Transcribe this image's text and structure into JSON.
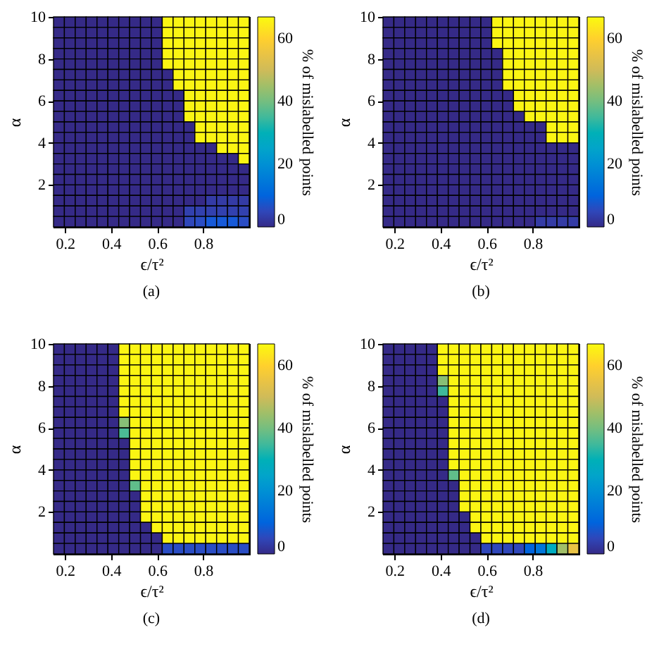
{
  "chart_data": [
    {
      "type": "heatmap",
      "title": "(a)",
      "xlabel": "ϵ/τ²",
      "ylabel": "α",
      "clabel": "% of mislabelled points",
      "xlim": [
        0.15,
        1
      ],
      "xticks": [
        0.2,
        0.4,
        0.6,
        0.8
      ],
      "ylim": [
        0,
        10
      ],
      "yticks": [
        2,
        4,
        6,
        8,
        10
      ],
      "clim": [
        0,
        67
      ],
      "cticks": [
        0,
        20,
        40,
        60
      ],
      "grid": false,
      "cells": [
        [
          0,
          0,
          0,
          0,
          0,
          0,
          0,
          0,
          0,
          0,
          66,
          66,
          66,
          66,
          66,
          66,
          66,
          66
        ],
        [
          0,
          0,
          0,
          0,
          0,
          0,
          0,
          0,
          0,
          0,
          66,
          66,
          66,
          66,
          66,
          66,
          66,
          66
        ],
        [
          0,
          0,
          0,
          0,
          0,
          0,
          0,
          0,
          0,
          0,
          66,
          66,
          66,
          66,
          66,
          66,
          66,
          66
        ],
        [
          0,
          0,
          0,
          0,
          0,
          0,
          0,
          0,
          0,
          0,
          66,
          66,
          66,
          66,
          66,
          66,
          66,
          66
        ],
        [
          0,
          0,
          0,
          0,
          0,
          0,
          0,
          0,
          0,
          0,
          66,
          66,
          66,
          66,
          66,
          66,
          66,
          66
        ],
        [
          0,
          0,
          0,
          0,
          0,
          0,
          0,
          0,
          0,
          0,
          0,
          66,
          66,
          66,
          66,
          66,
          66,
          66
        ],
        [
          0,
          0,
          0,
          0,
          0,
          0,
          0,
          0,
          0,
          0,
          0,
          66,
          66,
          66,
          66,
          66,
          66,
          66
        ],
        [
          0,
          0,
          0,
          0,
          0,
          0,
          0,
          0,
          0,
          0,
          0,
          0,
          66,
          66,
          66,
          66,
          66,
          66
        ],
        [
          0,
          0,
          0,
          0,
          0,
          0,
          0,
          0,
          0,
          0,
          0,
          0,
          66,
          66,
          66,
          66,
          66,
          66
        ],
        [
          0,
          0,
          0,
          0,
          0,
          0,
          0,
          0,
          0,
          0,
          0,
          0,
          66,
          66,
          66,
          66,
          66,
          66
        ],
        [
          0,
          0,
          0,
          0,
          0,
          0,
          0,
          0,
          0,
          0,
          0,
          0,
          0,
          66,
          66,
          66,
          66,
          66
        ],
        [
          0,
          0,
          0,
          0,
          0,
          0,
          0,
          0,
          0,
          0,
          0,
          0,
          0,
          66,
          66,
          66,
          66,
          66
        ],
        [
          0,
          0,
          0,
          0,
          0,
          0,
          0,
          0,
          0,
          0,
          0,
          0,
          0,
          0,
          0,
          66,
          66,
          66
        ],
        [
          0,
          0,
          0,
          0,
          0,
          0,
          0,
          0,
          0,
          0,
          0,
          0,
          0,
          0,
          0,
          0,
          0,
          66
        ],
        [
          0,
          0,
          0,
          0,
          0,
          0,
          0,
          0,
          0,
          0,
          0,
          0,
          0,
          0,
          0,
          0,
          0,
          0
        ],
        [
          0,
          0,
          0,
          0,
          0,
          0,
          0,
          0,
          0,
          0,
          0,
          0,
          0,
          0,
          0,
          0,
          0,
          0
        ],
        [
          0,
          0,
          0,
          0,
          0,
          0,
          0,
          0,
          0,
          0,
          0,
          0,
          0,
          0,
          0,
          0,
          0,
          0
        ],
        [
          0,
          0,
          0,
          0,
          0,
          0,
          0,
          0,
          0,
          0,
          0,
          0,
          0,
          0,
          3,
          3,
          3,
          3
        ],
        [
          0,
          0,
          0,
          0,
          0,
          0,
          0,
          0,
          0,
          0,
          0,
          0,
          4,
          4,
          4,
          4,
          4,
          4
        ],
        [
          0,
          0,
          0,
          0,
          0,
          0,
          0,
          0,
          0,
          0,
          0,
          0,
          5,
          6,
          8,
          8,
          8,
          6
        ]
      ]
    },
    {
      "type": "heatmap",
      "title": "(b)",
      "xlabel": "ϵ/τ²",
      "ylabel": "α",
      "clabel": "% of mislabelled points",
      "xlim": [
        0.15,
        1
      ],
      "xticks": [
        0.2,
        0.4,
        0.6,
        0.8
      ],
      "ylim": [
        0,
        10
      ],
      "yticks": [
        2,
        4,
        6,
        8,
        10
      ],
      "clim": [
        0,
        67
      ],
      "cticks": [
        0,
        20,
        40,
        60
      ],
      "grid": false,
      "cells": [
        [
          0,
          0,
          0,
          0,
          0,
          0,
          0,
          0,
          0,
          0,
          66,
          66,
          66,
          66,
          66,
          66,
          66,
          66
        ],
        [
          0,
          0,
          0,
          0,
          0,
          0,
          0,
          0,
          0,
          0,
          66,
          66,
          66,
          66,
          66,
          66,
          66,
          66
        ],
        [
          0,
          0,
          0,
          0,
          0,
          0,
          0,
          0,
          0,
          0,
          66,
          66,
          66,
          66,
          66,
          66,
          66,
          66
        ],
        [
          0,
          0,
          0,
          0,
          0,
          0,
          0,
          0,
          0,
          0,
          0,
          66,
          66,
          66,
          66,
          66,
          66,
          66
        ],
        [
          0,
          0,
          0,
          0,
          0,
          0,
          0,
          0,
          0,
          0,
          0,
          66,
          66,
          66,
          66,
          66,
          66,
          66
        ],
        [
          0,
          0,
          0,
          0,
          0,
          0,
          0,
          0,
          0,
          0,
          0,
          66,
          66,
          66,
          66,
          66,
          66,
          66
        ],
        [
          0,
          0,
          0,
          0,
          0,
          0,
          0,
          0,
          0,
          0,
          0,
          66,
          66,
          66,
          66,
          66,
          66,
          66
        ],
        [
          0,
          0,
          0,
          0,
          0,
          0,
          0,
          0,
          0,
          0,
          0,
          0,
          66,
          66,
          66,
          66,
          66,
          66
        ],
        [
          0,
          0,
          0,
          0,
          0,
          0,
          0,
          0,
          0,
          0,
          0,
          0,
          66,
          66,
          66,
          66,
          66,
          66
        ],
        [
          0,
          0,
          0,
          0,
          0,
          0,
          0,
          0,
          0,
          0,
          0,
          0,
          0,
          66,
          66,
          66,
          66,
          66
        ],
        [
          0,
          0,
          0,
          0,
          0,
          0,
          0,
          0,
          0,
          0,
          0,
          0,
          0,
          0,
          0,
          66,
          66,
          66
        ],
        [
          0,
          0,
          0,
          0,
          0,
          0,
          0,
          0,
          0,
          0,
          0,
          0,
          0,
          0,
          0,
          66,
          66,
          66
        ],
        [
          0,
          0,
          0,
          0,
          0,
          0,
          0,
          0,
          0,
          0,
          0,
          0,
          0,
          0,
          0,
          0,
          0,
          0
        ],
        [
          0,
          0,
          0,
          0,
          0,
          0,
          0,
          0,
          0,
          0,
          0,
          0,
          0,
          0,
          0,
          0,
          0,
          0
        ],
        [
          0,
          0,
          0,
          0,
          0,
          0,
          0,
          0,
          0,
          0,
          0,
          0,
          0,
          0,
          0,
          0,
          0,
          0
        ],
        [
          0,
          0,
          0,
          0,
          0,
          0,
          0,
          0,
          0,
          0,
          0,
          0,
          0,
          0,
          0,
          0,
          0,
          0
        ],
        [
          0,
          0,
          0,
          0,
          0,
          0,
          0,
          0,
          0,
          0,
          0,
          0,
          0,
          0,
          0,
          0,
          0,
          0
        ],
        [
          0,
          0,
          0,
          0,
          0,
          0,
          0,
          0,
          0,
          0,
          0,
          0,
          0,
          0,
          0,
          0,
          0,
          0
        ],
        [
          0,
          0,
          0,
          0,
          0,
          0,
          0,
          0,
          0,
          0,
          0,
          0,
          0,
          0,
          0,
          0,
          0,
          0
        ],
        [
          0,
          0,
          0,
          0,
          0,
          0,
          0,
          0,
          0,
          0,
          0,
          0,
          0,
          0,
          3,
          3,
          3,
          3
        ]
      ]
    },
    {
      "type": "heatmap",
      "title": "(c)",
      "xlabel": "ϵ/τ²",
      "ylabel": "α",
      "clabel": "% of mislabelled points",
      "xlim": [
        0.15,
        1
      ],
      "xticks": [
        0.2,
        0.4,
        0.6,
        0.8
      ],
      "ylim": [
        0,
        10
      ],
      "yticks": [
        2,
        4,
        6,
        8,
        10
      ],
      "clim": [
        0,
        67
      ],
      "cticks": [
        0,
        20,
        40,
        60
      ],
      "grid": false,
      "cells": [
        [
          0,
          0,
          0,
          0,
          0,
          0,
          66,
          66,
          66,
          66,
          66,
          66,
          66,
          66,
          66,
          66,
          66,
          66
        ],
        [
          0,
          0,
          0,
          0,
          0,
          0,
          66,
          66,
          66,
          66,
          66,
          66,
          66,
          66,
          66,
          66,
          66,
          66
        ],
        [
          0,
          0,
          0,
          0,
          0,
          0,
          66,
          66,
          66,
          66,
          66,
          66,
          66,
          66,
          66,
          66,
          66,
          66
        ],
        [
          0,
          0,
          0,
          0,
          0,
          0,
          66,
          66,
          66,
          66,
          66,
          66,
          66,
          66,
          66,
          66,
          66,
          66
        ],
        [
          0,
          0,
          0,
          0,
          0,
          0,
          66,
          66,
          66,
          66,
          66,
          66,
          66,
          66,
          66,
          66,
          66,
          66
        ],
        [
          0,
          0,
          0,
          0,
          0,
          0,
          66,
          66,
          66,
          66,
          66,
          66,
          66,
          66,
          66,
          66,
          66,
          66
        ],
        [
          0,
          0,
          0,
          0,
          0,
          0,
          66,
          66,
          66,
          66,
          66,
          66,
          66,
          66,
          66,
          66,
          66,
          66
        ],
        [
          0,
          0,
          0,
          0,
          0,
          0,
          42,
          66,
          66,
          66,
          66,
          66,
          66,
          66,
          66,
          66,
          66,
          66
        ],
        [
          0,
          0,
          0,
          0,
          0,
          0,
          36,
          66,
          66,
          66,
          66,
          66,
          66,
          66,
          66,
          66,
          66,
          66
        ],
        [
          0,
          0,
          0,
          0,
          0,
          0,
          0,
          66,
          66,
          66,
          66,
          66,
          66,
          66,
          66,
          66,
          66,
          66
        ],
        [
          0,
          0,
          0,
          0,
          0,
          0,
          0,
          66,
          66,
          66,
          66,
          66,
          66,
          66,
          66,
          66,
          66,
          66
        ],
        [
          0,
          0,
          0,
          0,
          0,
          0,
          0,
          66,
          66,
          66,
          66,
          66,
          66,
          66,
          66,
          66,
          66,
          66
        ],
        [
          0,
          0,
          0,
          0,
          0,
          0,
          0,
          66,
          66,
          66,
          66,
          66,
          66,
          66,
          66,
          66,
          66,
          66
        ],
        [
          0,
          0,
          0,
          0,
          0,
          0,
          0,
          38,
          66,
          66,
          66,
          66,
          66,
          66,
          66,
          66,
          66,
          66
        ],
        [
          0,
          0,
          0,
          0,
          0,
          0,
          0,
          0,
          66,
          66,
          66,
          66,
          66,
          66,
          66,
          66,
          66,
          66
        ],
        [
          0,
          0,
          0,
          0,
          0,
          0,
          0,
          0,
          66,
          66,
          66,
          66,
          66,
          66,
          66,
          66,
          66,
          66
        ],
        [
          0,
          0,
          0,
          0,
          0,
          0,
          0,
          0,
          66,
          66,
          66,
          66,
          66,
          66,
          66,
          66,
          66,
          66
        ],
        [
          0,
          0,
          0,
          0,
          0,
          0,
          0,
          0,
          0,
          66,
          66,
          66,
          66,
          66,
          66,
          66,
          66,
          66
        ],
        [
          0,
          0,
          0,
          0,
          0,
          0,
          0,
          0,
          0,
          0,
          66,
          66,
          66,
          66,
          66,
          66,
          66,
          66
        ],
        [
          0,
          0,
          0,
          0,
          0,
          0,
          0,
          0,
          0,
          0,
          6,
          6,
          6,
          6,
          6,
          6,
          6,
          6
        ]
      ]
    },
    {
      "type": "heatmap",
      "title": "(d)",
      "xlabel": "ϵ/τ²",
      "ylabel": "α",
      "clabel": "% of mislabelled points",
      "xlim": [
        0.15,
        1
      ],
      "xticks": [
        0.2,
        0.4,
        0.6,
        0.8
      ],
      "ylim": [
        0,
        10
      ],
      "yticks": [
        2,
        4,
        6,
        8,
        10
      ],
      "clim": [
        0,
        67
      ],
      "cticks": [
        0,
        20,
        40,
        60
      ],
      "grid": false,
      "cells": [
        [
          0,
          0,
          0,
          0,
          0,
          66,
          66,
          66,
          66,
          66,
          66,
          66,
          66,
          66,
          66,
          66,
          66,
          66
        ],
        [
          0,
          0,
          0,
          0,
          0,
          66,
          66,
          66,
          66,
          66,
          66,
          66,
          66,
          66,
          66,
          66,
          66,
          66
        ],
        [
          0,
          0,
          0,
          0,
          0,
          66,
          66,
          66,
          66,
          66,
          66,
          66,
          66,
          66,
          66,
          66,
          66,
          66
        ],
        [
          0,
          0,
          0,
          0,
          0,
          42,
          66,
          66,
          66,
          66,
          66,
          66,
          66,
          66,
          66,
          66,
          66,
          66
        ],
        [
          0,
          0,
          0,
          0,
          0,
          35,
          66,
          66,
          66,
          66,
          66,
          66,
          66,
          66,
          66,
          66,
          66,
          66
        ],
        [
          0,
          0,
          0,
          0,
          0,
          0,
          66,
          66,
          66,
          66,
          66,
          66,
          66,
          66,
          66,
          66,
          66,
          66
        ],
        [
          0,
          0,
          0,
          0,
          0,
          0,
          66,
          66,
          66,
          66,
          66,
          66,
          66,
          66,
          66,
          66,
          66,
          66
        ],
        [
          0,
          0,
          0,
          0,
          0,
          0,
          66,
          66,
          66,
          66,
          66,
          66,
          66,
          66,
          66,
          66,
          66,
          66
        ],
        [
          0,
          0,
          0,
          0,
          0,
          0,
          66,
          66,
          66,
          66,
          66,
          66,
          66,
          66,
          66,
          66,
          66,
          66
        ],
        [
          0,
          0,
          0,
          0,
          0,
          0,
          66,
          66,
          66,
          66,
          66,
          66,
          66,
          66,
          66,
          66,
          66,
          66
        ],
        [
          0,
          0,
          0,
          0,
          0,
          0,
          66,
          66,
          66,
          66,
          66,
          66,
          66,
          66,
          66,
          66,
          66,
          66
        ],
        [
          0,
          0,
          0,
          0,
          0,
          0,
          66,
          66,
          66,
          66,
          66,
          66,
          66,
          66,
          66,
          66,
          66,
          66
        ],
        [
          0,
          0,
          0,
          0,
          0,
          0,
          38,
          66,
          66,
          66,
          66,
          66,
          66,
          66,
          66,
          66,
          66,
          66
        ],
        [
          0,
          0,
          0,
          0,
          0,
          0,
          0,
          66,
          66,
          66,
          66,
          66,
          66,
          66,
          66,
          66,
          66,
          66
        ],
        [
          0,
          0,
          0,
          0,
          0,
          0,
          0,
          66,
          66,
          66,
          66,
          66,
          66,
          66,
          66,
          66,
          66,
          66
        ],
        [
          0,
          0,
          0,
          0,
          0,
          0,
          0,
          66,
          66,
          66,
          66,
          66,
          66,
          66,
          66,
          66,
          66,
          66
        ],
        [
          0,
          0,
          0,
          0,
          0,
          0,
          0,
          0,
          66,
          66,
          66,
          66,
          66,
          66,
          66,
          66,
          66,
          66
        ],
        [
          0,
          0,
          0,
          0,
          0,
          0,
          0,
          0,
          66,
          66,
          66,
          66,
          66,
          66,
          66,
          66,
          66,
          66
        ],
        [
          0,
          0,
          0,
          0,
          0,
          0,
          0,
          0,
          0,
          66,
          66,
          66,
          66,
          66,
          66,
          66,
          66,
          66
        ],
        [
          0,
          0,
          0,
          0,
          0,
          0,
          0,
          0,
          0,
          5,
          5,
          5,
          5,
          10,
          14,
          28,
          45,
          55
        ]
      ]
    }
  ]
}
